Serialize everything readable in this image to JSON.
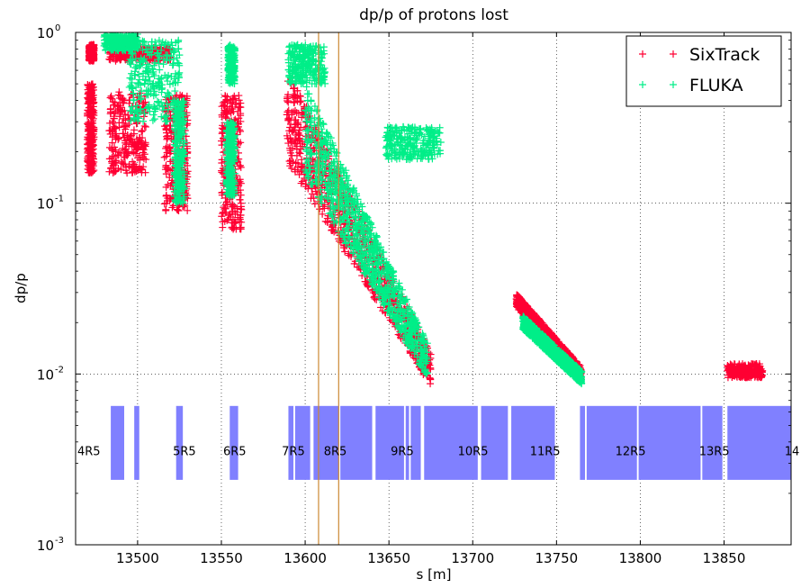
{
  "chart_data": {
    "type": "scatter",
    "title": "dp/p of protons lost",
    "xlabel": "s [m]",
    "ylabel": "dp/p",
    "xscale": "linear",
    "yscale": "log",
    "xlim": [
      13463,
      13890
    ],
    "ylim": [
      0.001,
      1.0
    ],
    "xticks": [
      13500,
      13550,
      13600,
      13650,
      13700,
      13750,
      13800,
      13850
    ],
    "xtick_labels": [
      "13500",
      "13550",
      "13600",
      "13650",
      "13700",
      "13750",
      "13800",
      "13850"
    ],
    "yticks": [
      0.001,
      0.01,
      0.1,
      1
    ],
    "ytick_labels": [
      {
        "base": "10",
        "exp": "-3"
      },
      {
        "base": "10",
        "exp": "-2"
      },
      {
        "base": "10",
        "exp": "-1"
      },
      {
        "base": "10",
        "exp": "0"
      }
    ],
    "grid": true,
    "grid_style": "dotted",
    "legend_position": "top-right",
    "series": [
      {
        "name": "SixTrack",
        "marker": "+",
        "color": "#ff0033",
        "clusters": [
          {
            "x": [
              13470,
              13474
            ],
            "y": [
              0.15,
              0.5
            ]
          },
          {
            "x": [
              13471,
              13474
            ],
            "y": [
              0.68,
              0.85
            ]
          },
          {
            "x": [
              13483,
              13505
            ],
            "y": [
              0.15,
              0.45
            ]
          },
          {
            "x": [
              13483,
              13520
            ],
            "y": [
              0.68,
              0.82
            ]
          },
          {
            "x": [
              13516,
              13530
            ],
            "y": [
              0.09,
              0.43
            ]
          },
          {
            "x": [
              13550,
              13562
            ],
            "y": [
              0.07,
              0.43
            ]
          },
          {
            "x": [
              13589,
              13675
            ],
            "y": [
              0.015,
              0.47
            ],
            "shape": "band"
          },
          {
            "x": [
              13726,
              13765
            ],
            "y": [
              0.01,
              0.027
            ],
            "shape": "diag"
          },
          {
            "x": [
              13852,
              13873
            ],
            "y": [
              0.0095,
              0.0115
            ]
          }
        ]
      },
      {
        "name": "FLUKA",
        "marker": "+",
        "color": "#00ee88",
        "clusters": [
          {
            "x": [
              13480,
              13500
            ],
            "y": [
              0.78,
              0.98
            ]
          },
          {
            "x": [
              13495,
              13525
            ],
            "y": [
              0.3,
              0.9
            ]
          },
          {
            "x": [
              13522,
              13528
            ],
            "y": [
              0.1,
              0.4
            ]
          },
          {
            "x": [
              13553,
              13558
            ],
            "y": [
              0.11,
              0.3
            ]
          },
          {
            "x": [
              13554,
              13558
            ],
            "y": [
              0.5,
              0.85
            ]
          },
          {
            "x": [
              13590,
              13612
            ],
            "y": [
              0.5,
              0.85
            ]
          },
          {
            "x": [
              13600,
              13673
            ],
            "y": [
              0.017,
              0.38
            ],
            "shape": "band"
          },
          {
            "x": [
              13730,
              13765
            ],
            "y": [
              0.0095,
              0.02
            ],
            "shape": "diag"
          },
          {
            "x": [
              13648,
              13681
            ],
            "y": [
              0.18,
              0.28
            ]
          }
        ]
      }
    ],
    "aperture_bands": {
      "color": "#8080ff",
      "y_range": [
        0.0024,
        0.0065
      ],
      "segments": [
        [
          13484,
          13492
        ],
        [
          13498,
          13501
        ],
        [
          13523,
          13527
        ],
        [
          13555,
          13560
        ],
        [
          13590,
          13593
        ],
        [
          13594,
          13603
        ],
        [
          13605,
          13620
        ],
        [
          13621,
          13640
        ],
        [
          13642,
          13659
        ],
        [
          13660,
          13662
        ],
        [
          13663,
          13669
        ],
        [
          13671,
          13703
        ],
        [
          13705,
          13721
        ],
        [
          13723,
          13749
        ],
        [
          13764,
          13767
        ],
        [
          13768,
          13798
        ],
        [
          13799,
          13836
        ],
        [
          13837,
          13849
        ],
        [
          13852,
          13891
        ]
      ]
    },
    "vertical_lines": {
      "color": "#cc8833",
      "x": [
        13608,
        13620
      ]
    },
    "element_labels": [
      {
        "text": "4R5",
        "x": 13463
      },
      {
        "text": "5R5",
        "x": 13520
      },
      {
        "text": "6R5",
        "x": 13550
      },
      {
        "text": "7R5",
        "x": 13585
      },
      {
        "text": "8R5",
        "x": 13610
      },
      {
        "text": "9R5",
        "x": 13650
      },
      {
        "text": "10R5",
        "x": 13690
      },
      {
        "text": "11R5",
        "x": 13733
      },
      {
        "text": "12R5",
        "x": 13784
      },
      {
        "text": "13R5",
        "x": 13834
      },
      {
        "text": "14",
        "x": 13885
      }
    ],
    "element_label_y": 0.0035
  }
}
